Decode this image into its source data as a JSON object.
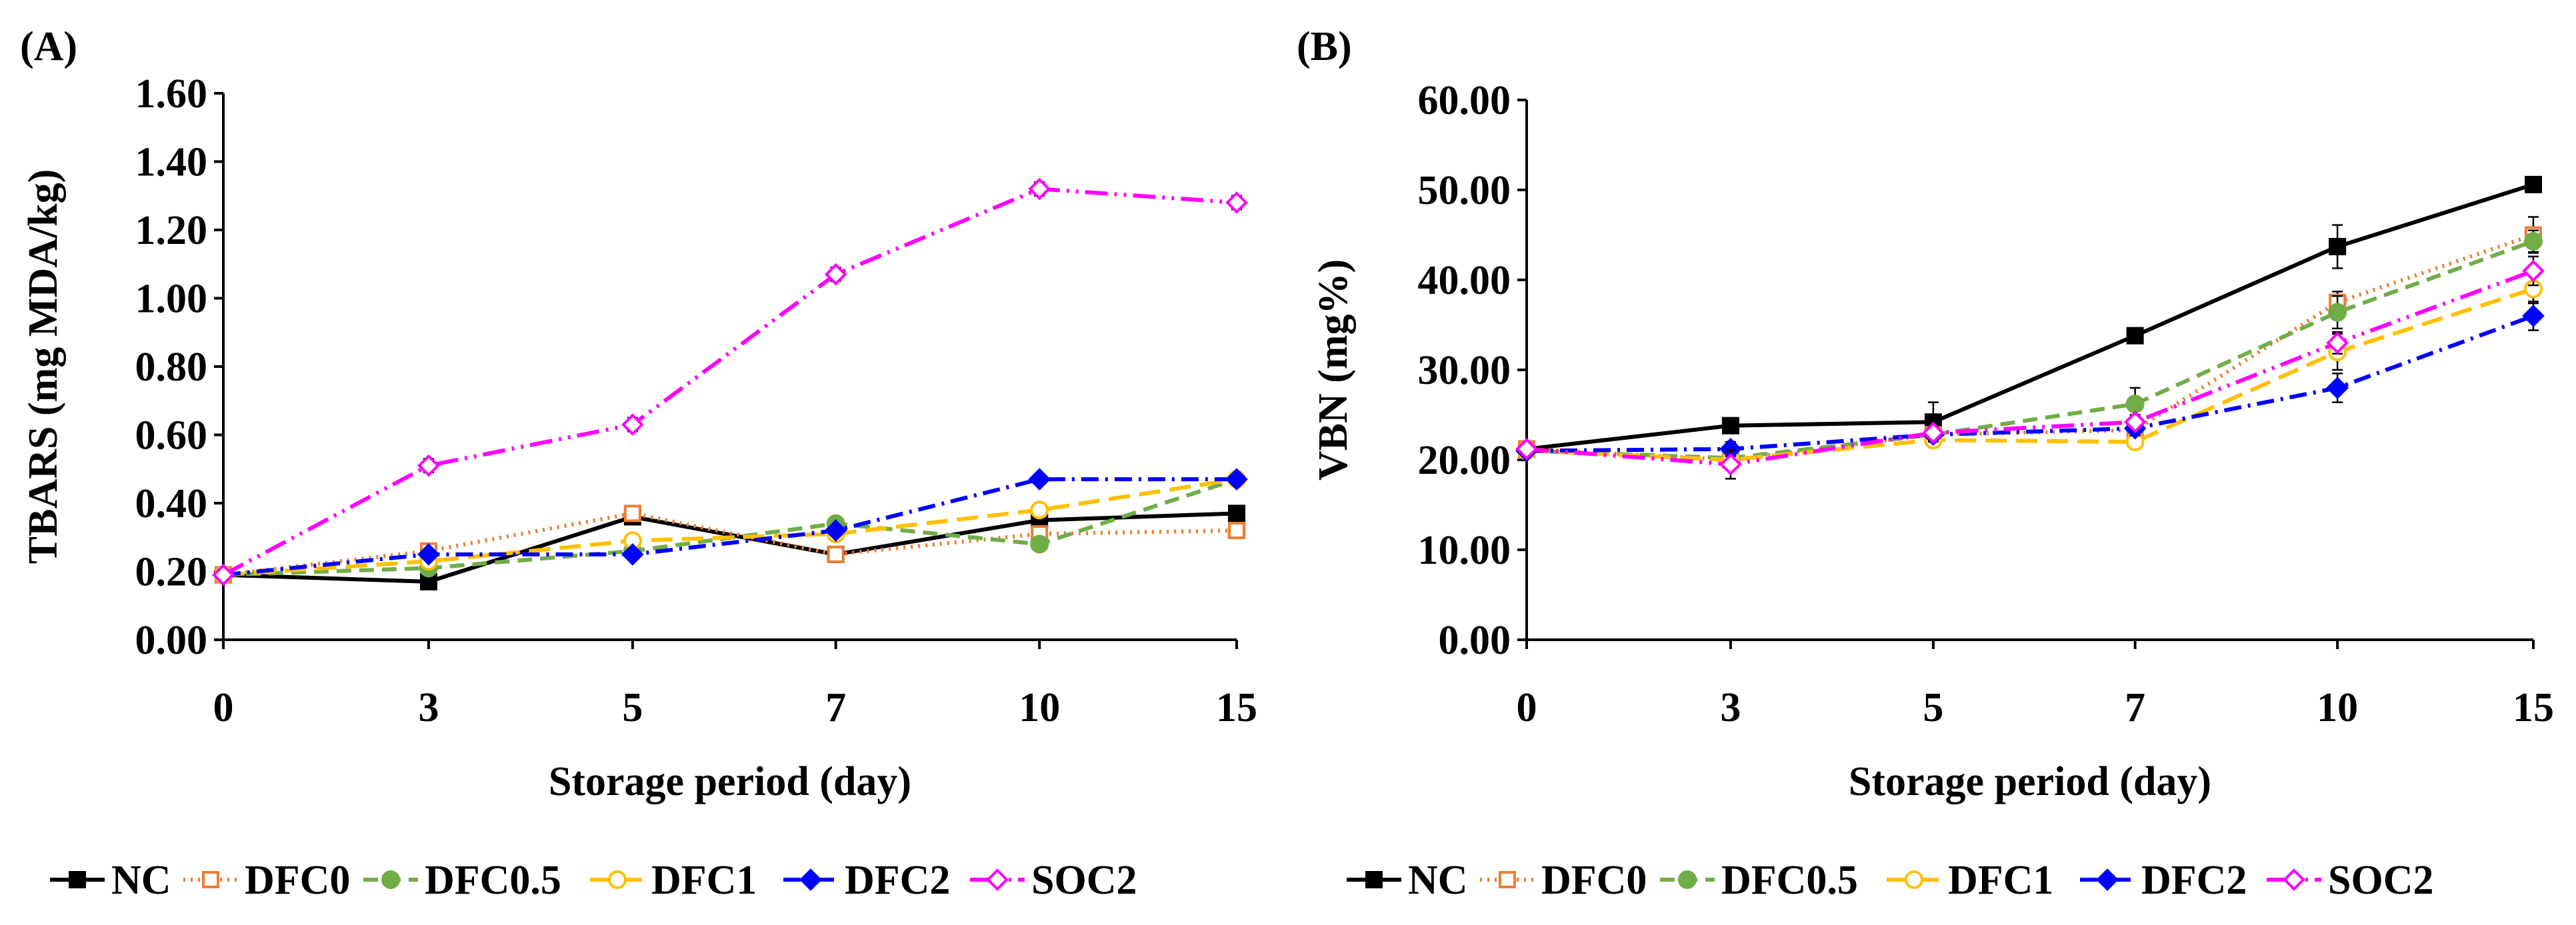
{
  "chart_data": [
    {
      "type": "line",
      "panel_label": "(A)",
      "title": "",
      "xlabel": "Storage period (day)",
      "ylabel": "TBARS (mg MDA/kg)",
      "categories": [
        "0",
        "3",
        "5",
        "7",
        "10",
        "15"
      ],
      "ylim": [
        0,
        1.6
      ],
      "yticks": [
        "0.00",
        "0.20",
        "0.40",
        "0.60",
        "0.80",
        "1.00",
        "1.20",
        "1.40",
        "1.60"
      ],
      "grid": false,
      "legend_position": "bottom",
      "series": [
        {
          "name": "NC",
          "values": [
            0.19,
            0.17,
            0.36,
            0.25,
            0.35,
            0.37
          ],
          "errors": [
            0.01,
            0.01,
            0.02,
            0.01,
            0.02,
            0.01
          ]
        },
        {
          "name": "DFC0",
          "values": [
            0.19,
            0.26,
            0.37,
            0.25,
            0.31,
            0.32
          ],
          "errors": [
            0.01,
            0.01,
            0.02,
            0.01,
            0.01,
            0.01
          ]
        },
        {
          "name": "DFC0.5",
          "values": [
            0.19,
            0.21,
            0.26,
            0.34,
            0.28,
            0.47
          ],
          "errors": [
            0.01,
            0.01,
            0.01,
            0.01,
            0.01,
            0.01
          ]
        },
        {
          "name": "DFC1",
          "values": [
            0.19,
            0.23,
            0.29,
            0.31,
            0.38,
            0.47
          ],
          "errors": [
            0.01,
            0.01,
            0.01,
            0.01,
            0.01,
            0.01
          ]
        },
        {
          "name": "DFC2",
          "values": [
            0.19,
            0.25,
            0.25,
            0.32,
            0.47,
            0.47
          ],
          "errors": [
            0.01,
            0.01,
            0.01,
            0.01,
            0.01,
            0.01
          ]
        },
        {
          "name": "SOC2",
          "values": [
            0.19,
            0.51,
            0.63,
            1.07,
            1.32,
            1.28
          ],
          "errors": [
            0.01,
            0.02,
            0.02,
            0.02,
            0.02,
            0.02
          ]
        }
      ]
    },
    {
      "type": "line",
      "panel_label": "(B)",
      "title": "",
      "xlabel": "Storage period (day)",
      "ylabel": "VBN (mg%)",
      "categories": [
        "0",
        "3",
        "5",
        "7",
        "10",
        "15"
      ],
      "ylim": [
        0,
        60
      ],
      "yticks": [
        "0.00",
        "10.00",
        "20.00",
        "30.00",
        "40.00",
        "50.00",
        "60.00"
      ],
      "grid": false,
      "legend_position": "bottom",
      "series": [
        {
          "name": "NC",
          "values": [
            21.2,
            23.8,
            24.2,
            33.8,
            43.7,
            50.6
          ],
          "errors": [
            0.6,
            0.6,
            2.2,
            0.8,
            2.4,
            0.6
          ]
        },
        {
          "name": "DFC0",
          "values": [
            21.2,
            20.0,
            22.8,
            23.3,
            37.5,
            45.0
          ],
          "errors": [
            0.6,
            0.8,
            0.8,
            0.8,
            1.2,
            2.0
          ]
        },
        {
          "name": "DFC0.5",
          "values": [
            21.0,
            20.2,
            22.8,
            26.2,
            36.4,
            44.3
          ],
          "errors": [
            0.6,
            0.8,
            0.8,
            1.8,
            1.8,
            1.2
          ]
        },
        {
          "name": "DFC1",
          "values": [
            21.0,
            20.0,
            22.2,
            22.0,
            32.0,
            39.0
          ],
          "errors": [
            0.6,
            0.8,
            0.8,
            0.8,
            2.0,
            1.6
          ]
        },
        {
          "name": "DFC2",
          "values": [
            21.0,
            21.2,
            22.8,
            23.5,
            28.0,
            36.0
          ],
          "errors": [
            0.6,
            0.8,
            0.8,
            0.8,
            1.6,
            1.6
          ]
        },
        {
          "name": "SOC2",
          "values": [
            21.2,
            19.5,
            23.0,
            24.2,
            33.0,
            41.0
          ],
          "errors": [
            0.6,
            1.6,
            0.8,
            0.8,
            1.2,
            1.6
          ]
        }
      ]
    }
  ],
  "series_styles": {
    "NC": {
      "color": "#000000",
      "dash": "",
      "marker": "square",
      "fill": true
    },
    "DFC0": {
      "color": "#ED7D31",
      "dash": "3,8",
      "marker": "square",
      "fill": false
    },
    "DFC0.5": {
      "color": "#70AD47",
      "dash": "22,12",
      "marker": "circle",
      "fill": true
    },
    "DFC1": {
      "color": "#FFC000",
      "dash": "32,14",
      "marker": "circle",
      "fill": false
    },
    "DFC2": {
      "color": "#0000FF",
      "dash": "26,10,4,10",
      "marker": "diamond",
      "fill": true
    },
    "SOC2": {
      "color": "#FF00FF",
      "dash": "34,10,4,10,4,10",
      "marker": "diamond",
      "fill": false
    }
  }
}
